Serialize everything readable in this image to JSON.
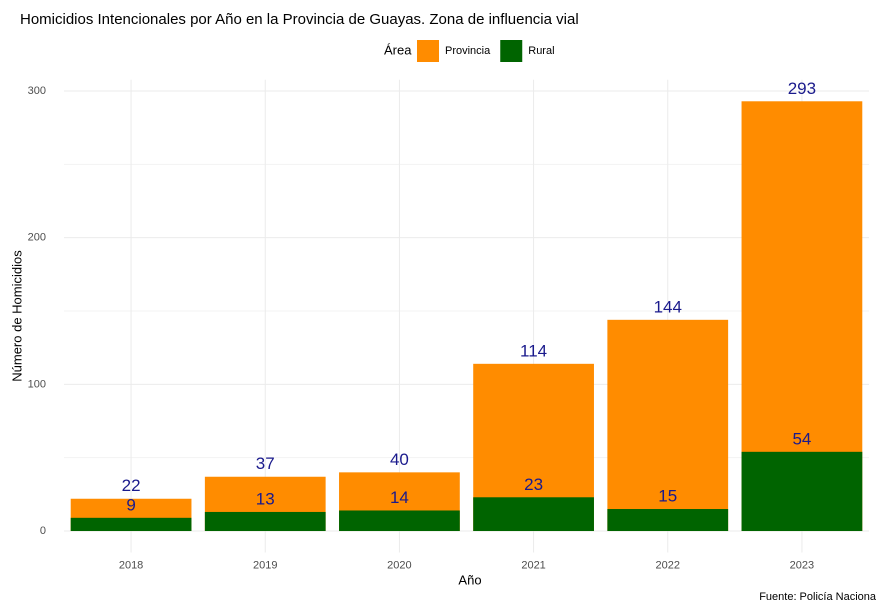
{
  "chart_data": {
    "type": "bar",
    "title": "Homicidios Intencionales por Año en la Provincia de Guayas. Zona de influencia vial",
    "x_label": "Año",
    "y_label": "Número de Homicidios",
    "legend_title": "Área",
    "caption": "Fuente: Policía Naciona",
    "categories": [
      "2018",
      "2019",
      "2020",
      "2021",
      "2022",
      "2023"
    ],
    "series": [
      {
        "name": "Provincia",
        "color": "#ff8c00",
        "values": [
          22,
          37,
          40,
          114,
          144,
          293
        ]
      },
      {
        "name": "Rural",
        "color": "#006400",
        "values": [
          9,
          13,
          14,
          23,
          15,
          54
        ]
      }
    ],
    "label_color": "#1a1a8c",
    "ylim": [
      -14.65,
      307.65
    ],
    "yticks": [
      0,
      100,
      200,
      300
    ],
    "grid": true,
    "legend": "top"
  }
}
